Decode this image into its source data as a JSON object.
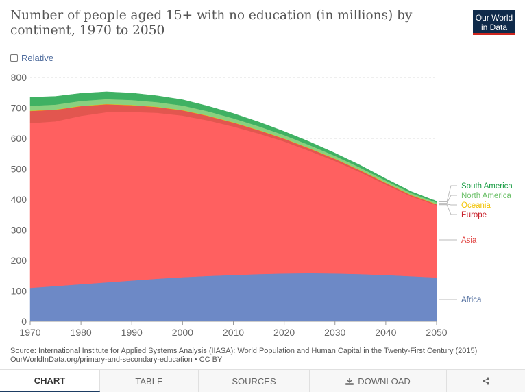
{
  "header": {
    "title": "Number of people aged 15+ with no education (in millions) by continent, 1970 to 2050",
    "logo_line1": "Our World",
    "logo_line2": "in Data"
  },
  "controls": {
    "relative_label": "Relative"
  },
  "chart_data": {
    "type": "area",
    "stacked": true,
    "x": [
      1970,
      1975,
      1980,
      1985,
      1990,
      1995,
      2000,
      2005,
      2010,
      2015,
      2020,
      2025,
      2030,
      2035,
      2040,
      2045,
      2050
    ],
    "xlim": [
      1970,
      2050
    ],
    "ylim": [
      0,
      800
    ],
    "x_ticks": [
      "1970",
      "1980",
      "1990",
      "2000",
      "2010",
      "2020",
      "2030",
      "2040",
      "2050"
    ],
    "y_ticks": [
      "0",
      "100",
      "200",
      "300",
      "400",
      "500",
      "600",
      "700",
      "800"
    ],
    "grid": "horizontal dashed",
    "legend": "right, labels at line ends",
    "series": [
      {
        "name": "Africa",
        "color": "#6d89c6",
        "values": [
          110,
          116,
          122,
          128,
          134,
          140,
          145,
          149,
          152,
          155,
          157,
          158,
          157,
          155,
          152,
          148,
          144
        ]
      },
      {
        "name": "Asia",
        "color": "#ff6060",
        "values": [
          540,
          540,
          552,
          558,
          553,
          544,
          530,
          510,
          487,
          461,
          433,
          401,
          369,
          334,
          297,
          262,
          237
        ]
      },
      {
        "name": "Europe",
        "color": "#e2564f",
        "values": [
          40,
          38,
          32,
          26,
          22,
          19,
          17,
          15,
          13,
          11,
          9,
          8,
          7,
          6,
          5,
          4,
          3
        ]
      },
      {
        "name": "Oceania",
        "color": "#f2c200",
        "values": [
          1,
          1,
          1,
          1,
          1,
          1,
          1,
          1,
          1,
          1,
          1,
          1,
          1,
          1,
          1,
          1,
          1
        ]
      },
      {
        "name": "North America",
        "color": "#8ad07f",
        "values": [
          16,
          16,
          16,
          16,
          16,
          15,
          15,
          14,
          13,
          12,
          11,
          10,
          9,
          8,
          7,
          6,
          5
        ]
      },
      {
        "name": "South America",
        "color": "#3fb163",
        "values": [
          28,
          27,
          25,
          24,
          23,
          21,
          19,
          17,
          16,
          14,
          12,
          11,
          9,
          8,
          6,
          5,
          4
        ]
      }
    ],
    "legend_colors": {
      "South America": "#1a9e45",
      "North America": "#6dc16a",
      "Oceania": "#f2c200",
      "Europe": "#c8202a",
      "Asia": "#e0403e",
      "Africa": "#4c6a9c"
    }
  },
  "footer": {
    "source_line1": "Source: International Institute for Applied Systems Analysis (IIASA): World Population and Human Capital in the Twenty-First Century (2015)",
    "source_line2": "OurWorldInData.org/primary-and-secondary-education • CC BY"
  },
  "tabs": {
    "chart": "CHART",
    "table": "TABLE",
    "sources": "SOURCES",
    "download": "DOWNLOAD",
    "download_icon": "download-icon",
    "share_icon": "share-icon"
  }
}
